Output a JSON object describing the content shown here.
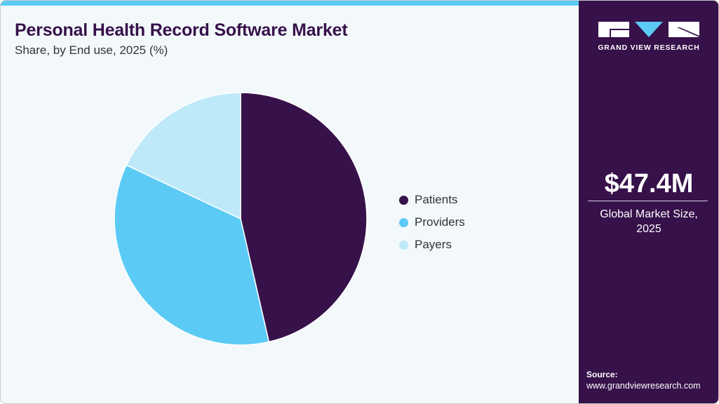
{
  "header": {
    "title": "Personal Health Record Software Market",
    "subtitle": "Share, by End use, 2025 (%)"
  },
  "legend": {
    "items": [
      {
        "label": "Patients",
        "color": "#37114a"
      },
      {
        "label": "Providers",
        "color": "#5bcbf5"
      },
      {
        "label": "Payers",
        "color": "#bde9f9"
      }
    ]
  },
  "sidebar": {
    "brand": "GRAND VIEW RESEARCH",
    "market_size": "$47.4M",
    "market_size_caption_line1": "Global Market Size,",
    "market_size_caption_line2": "2025",
    "source_label": "Source:",
    "source_url": "www.grandviewresearch.com"
  },
  "colors": {
    "accent_bar": "#5bcbf5",
    "sidebar_bg": "#37114a",
    "plot_bg": "#f3f8fb"
  },
  "chart_data": {
    "type": "pie",
    "title": "Personal Health Record Software Market",
    "subtitle": "Share, by End use, 2025 (%)",
    "categories": [
      "Patients",
      "Providers",
      "Payers"
    ],
    "values": [
      46.4,
      35.6,
      18.0
    ],
    "colors": [
      "#37114a",
      "#5bcbf5",
      "#bde9f9"
    ],
    "start_angle": "12 o'clock, clockwise",
    "legend_position": "right"
  }
}
